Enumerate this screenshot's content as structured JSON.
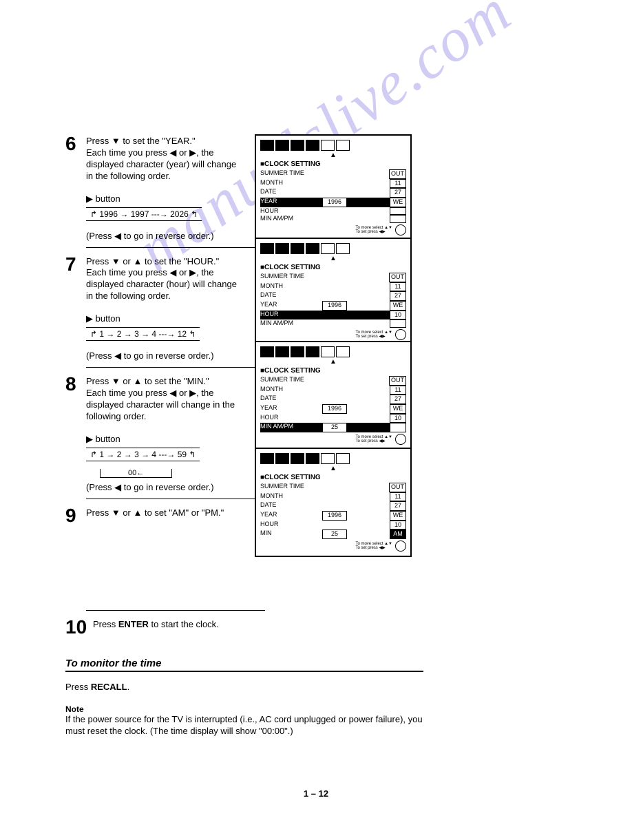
{
  "watermark": "manualslive.com",
  "pageNumber": "1 – 12",
  "steps": [
    {
      "num": "6",
      "text": "Press ▼ to set the \"YEAR.\"\nEach time you press ◀ or ▶, the displayed character (year) will change in the following order.",
      "button": "▶ button",
      "sequence": "↱ 1996 → 1997 ---→ 2026 ↰",
      "reverse": "(Press ◀ to go in reverse order.)",
      "osdTop": 0,
      "osd": {
        "title": "■CLOCK SETTING",
        "rows": [
          {
            "label": "SUMMER TIME",
            "val": "OUT",
            "hl": false
          },
          {
            "label": "MONTH",
            "val": "11",
            "hl": false
          },
          {
            "label": "DATE",
            "val": "27",
            "hl": false
          },
          {
            "label": "YEAR",
            "val2": "1996",
            "val": "WE",
            "hl": true
          },
          {
            "label": "HOUR",
            "val": "",
            "hl": false
          },
          {
            "label": "MIN  AM/PM",
            "val": "",
            "hl": false
          }
        ]
      }
    },
    {
      "num": "7",
      "text": "Press ▼ or ▲ to set the \"HOUR.\"\nEach time you press ◀ or ▶, the displayed character (hour) will change in the following order.",
      "button": "▶ button",
      "sequence": "↱ 1 → 2 → 3 → 4 ---→ 12 ↰",
      "reverse": "(Press ◀ to go in reverse order.)",
      "osdTop": 150,
      "osd": {
        "title": "■CLOCK SETTING",
        "rows": [
          {
            "label": "SUMMER TIME",
            "val": "OUT",
            "hl": false
          },
          {
            "label": "MONTH",
            "val": "11",
            "hl": false
          },
          {
            "label": "DATE",
            "val": "27",
            "hl": false
          },
          {
            "label": "YEAR",
            "val2": "1996",
            "val": "WE",
            "hl": false
          },
          {
            "label": "HOUR",
            "val": "10",
            "hl": true
          },
          {
            "label": "MIN  AM/PM",
            "val": "",
            "hl": false
          }
        ]
      }
    },
    {
      "num": "8",
      "text": "Press ▼ or ▲ to set the \"MIN.\"\nEach time you press ◀ or ▶, the displayed character will change in the following order.",
      "button": "▶ button",
      "sequence": "↱ 1 → 2 → 3 → 4 ---→ 59 ↰",
      "sequence2": "00←",
      "reverse": "(Press ◀ to go in reverse order.)",
      "osdTop": 300,
      "osd": {
        "title": "■CLOCK SETTING",
        "rows": [
          {
            "label": "SUMMER TIME",
            "val": "OUT",
            "hl": false
          },
          {
            "label": "MONTH",
            "val": "11",
            "hl": false
          },
          {
            "label": "DATE",
            "val": "27",
            "hl": false
          },
          {
            "label": "YEAR",
            "val2": "1996",
            "val": "WE",
            "hl": false
          },
          {
            "label": "HOUR",
            "val": "10",
            "hl": false
          },
          {
            "label": "MIN  AM/PM",
            "val2": "25",
            "val": "",
            "hl": true,
            "minrow": true
          }
        ]
      }
    },
    {
      "num": "9",
      "text": "Press ▼ or ▲ to set \"AM\" or \"PM.\"",
      "osdTop": 455,
      "osd": {
        "title": "■CLOCK SETTING",
        "rows": [
          {
            "label": "SUMMER TIME",
            "val": "OUT",
            "hl": false
          },
          {
            "label": "MONTH",
            "val": "11",
            "hl": false
          },
          {
            "label": "DATE",
            "val": "27",
            "hl": false
          },
          {
            "label": "YEAR",
            "val2": "1996",
            "val": "WE",
            "hl": false
          },
          {
            "label": "HOUR",
            "val": "10",
            "hl": false
          },
          {
            "label": "MIN",
            "val2": "25",
            "val": "AM",
            "hl": false,
            "ampmhl": true
          }
        ]
      }
    },
    {
      "num": "10",
      "rich": true,
      "pre": "Press ",
      "bold": "ENTER",
      "post": " to start the clock."
    }
  ],
  "section": {
    "heading": "To monitor the time",
    "preRecall": "Press ",
    "recall": "RECALL",
    "postRecall": ".",
    "noteHead": "Note",
    "noteBody": "If the power source for the TV is interrupted (i.e., AC cord unplugged or power failure), you must reset the clock. (The time display will show \"00:00\".)"
  }
}
